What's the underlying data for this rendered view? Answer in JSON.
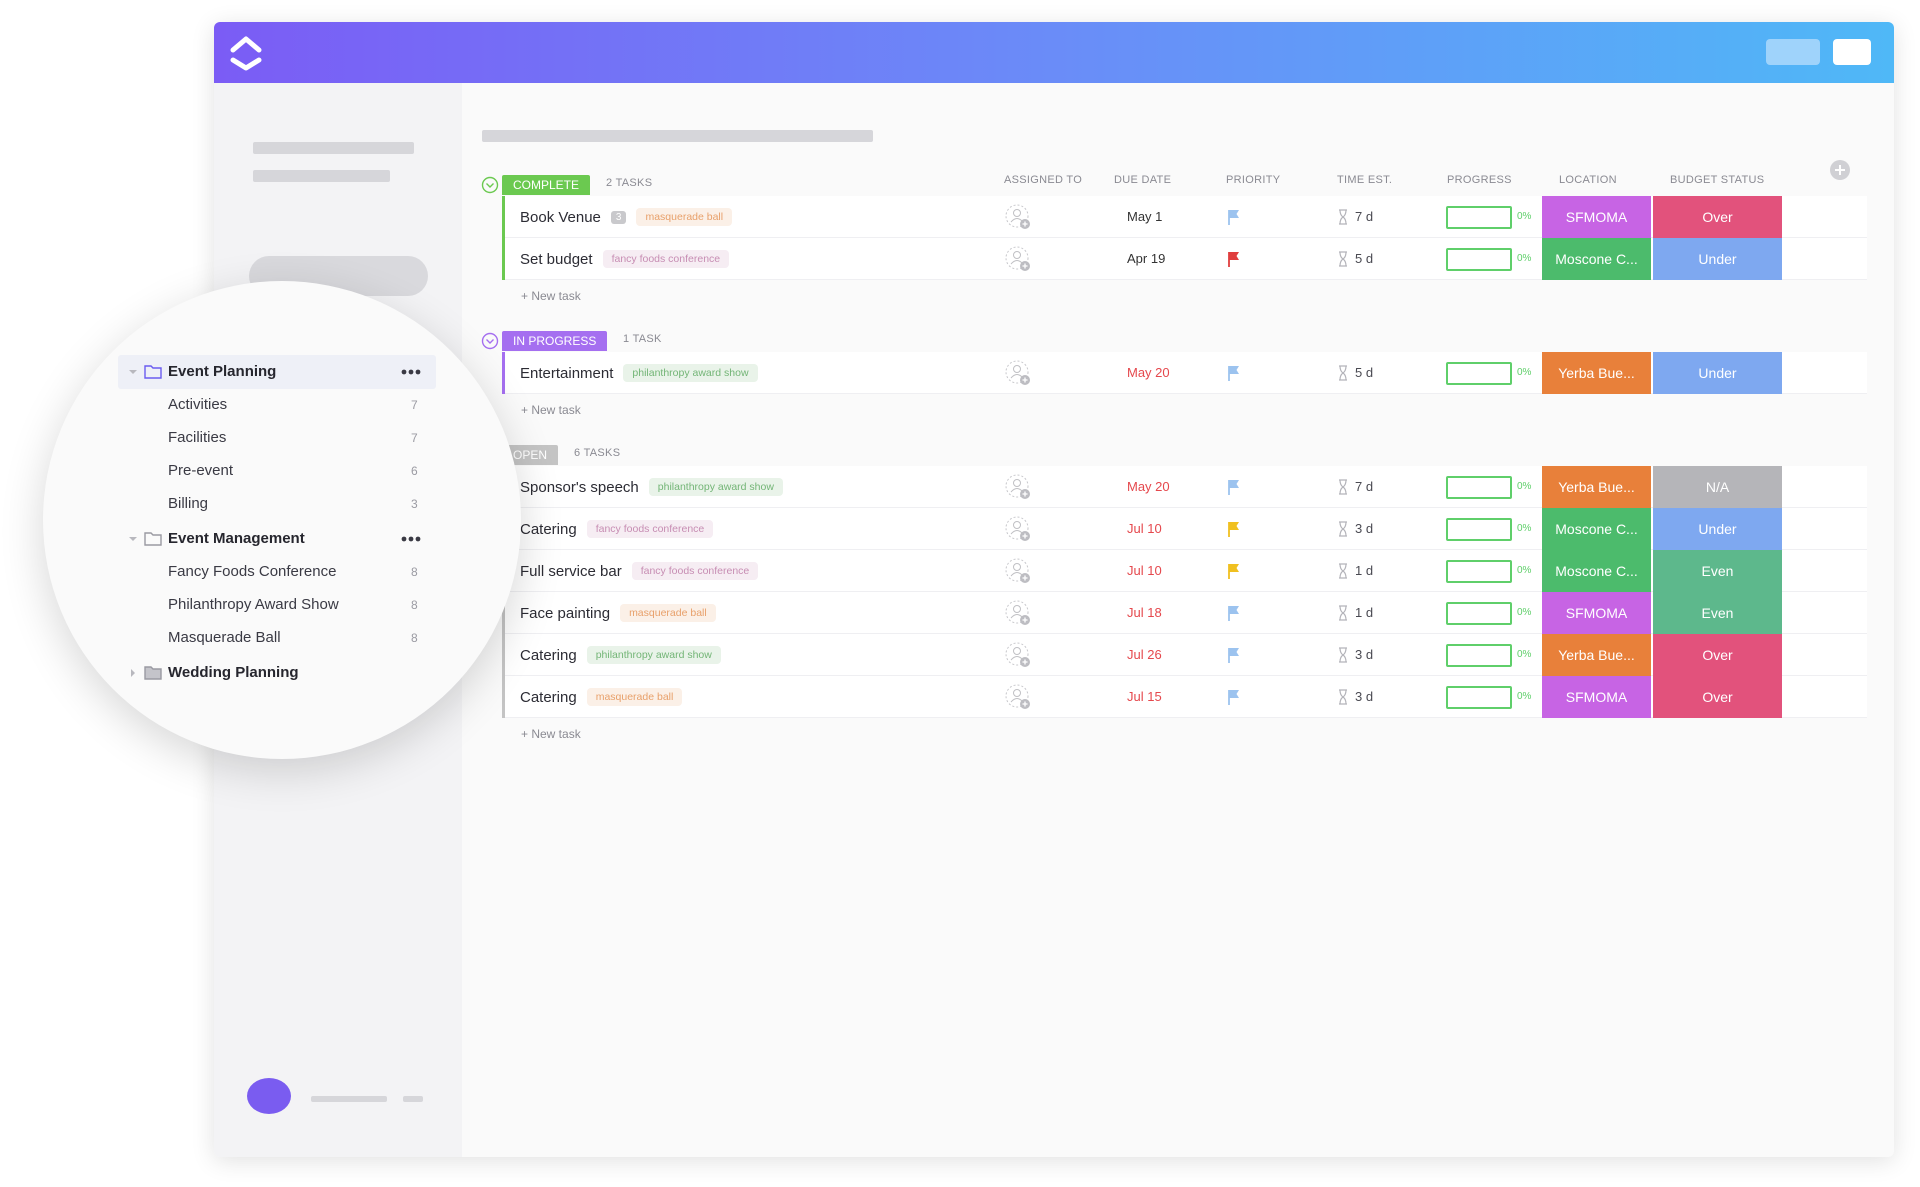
{
  "sidebar": {
    "tree": [
      {
        "label": "Event Planning",
        "children": [
          {
            "label": "Activities",
            "count": 7
          },
          {
            "label": "Facilities",
            "count": 7
          },
          {
            "label": "Pre-event",
            "count": 6
          },
          {
            "label": "Billing",
            "count": 3
          }
        ]
      },
      {
        "label": "Event Management",
        "children": [
          {
            "label": "Fancy Foods Conference",
            "count": 8
          },
          {
            "label": "Philanthropy Award Show",
            "count": 8
          },
          {
            "label": "Masquerade Ball",
            "count": 8
          }
        ]
      },
      {
        "label": "Wedding Planning",
        "children": []
      }
    ]
  },
  "table": {
    "columns": [
      "ASSIGNED TO",
      "DUE DATE",
      "PRIORITY",
      "TIME EST.",
      "PROGRESS",
      "LOCATION",
      "BUDGET STATUS"
    ],
    "new_task": "+ New task",
    "groups": [
      {
        "status": "COMPLETE",
        "count": "2 TASKS",
        "color": "#6bc950",
        "tasks": [
          {
            "name": "Book Venue",
            "subtasks": 3,
            "tag": "masquerade ball",
            "tag_color": "#e8a06a",
            "due": "May 1",
            "due_color": "#333333",
            "priority_color": "#9cc3ef",
            "time": "7 d",
            "progress": "0%",
            "location": "SFMOMA",
            "location_color": "#c764e4",
            "budget": "Over",
            "budget_color": "#e2527c"
          },
          {
            "name": "Set budget",
            "tag": "fancy foods conference",
            "tag_color": "#c78db3",
            "due": "Apr 19",
            "due_color": "#333333",
            "priority_color": "#e03e3e",
            "time": "5 d",
            "progress": "0%",
            "location": "Moscone C...",
            "location_color": "#4cbb6c",
            "budget": "Under",
            "budget_color": "#7ea8f0"
          }
        ]
      },
      {
        "status": "IN PROGRESS",
        "count": "1 TASK",
        "color": "#a56ff0",
        "tasks": [
          {
            "name": "Entertainment",
            "tag": "philanthropy award show",
            "tag_color": "#73b576",
            "due": "May 20",
            "due_color": "#e5484d",
            "priority_color": "#9cc3ef",
            "time": "5 d",
            "progress": "0%",
            "location": "Yerba Bue...",
            "location_color": "#e8803a",
            "budget": "Under",
            "budget_color": "#7ea8f0"
          }
        ]
      },
      {
        "status": "OPEN",
        "count": "6 TASKS",
        "color": "#c4c4c4",
        "tasks": [
          {
            "name": "Sponsor's speech",
            "tag": "philanthropy award show",
            "tag_color": "#73b576",
            "due": "May 20",
            "due_color": "#e5484d",
            "priority_color": "#9cc3ef",
            "time": "7 d",
            "progress": "0%",
            "location": "Yerba Bue...",
            "location_color": "#e8803a",
            "budget": "N/A",
            "budget_color": "#b5b5b9"
          },
          {
            "name": "Catering",
            "tag": "fancy foods conference",
            "tag_color": "#c78db3",
            "due": "Jul 10",
            "due_color": "#e5484d",
            "priority_color": "#f0c020",
            "time": "3 d",
            "progress": "0%",
            "location": "Moscone C...",
            "location_color": "#4cbb6c",
            "budget": "Under",
            "budget_color": "#7ea8f0"
          },
          {
            "name": "Full service bar",
            "tag": "fancy foods conference",
            "tag_color": "#c78db3",
            "due": "Jul 10",
            "due_color": "#e5484d",
            "priority_color": "#f0c020",
            "time": "1 d",
            "progress": "0%",
            "location": "Moscone C...",
            "location_color": "#4cbb6c",
            "budget": "Even",
            "budget_color": "#5db88c"
          },
          {
            "name": "Face painting",
            "tag": "masquerade ball",
            "tag_color": "#e8a06a",
            "due": "Jul 18",
            "due_color": "#e5484d",
            "priority_color": "#9cc3ef",
            "time": "1 d",
            "progress": "0%",
            "location": "SFMOMA",
            "location_color": "#c764e4",
            "budget": "Even",
            "budget_color": "#5db88c"
          },
          {
            "name": "Catering",
            "tag": "philanthropy award show",
            "tag_color": "#73b576",
            "due": "Jul 26",
            "due_color": "#e5484d",
            "priority_color": "#9cc3ef",
            "time": "3 d",
            "progress": "0%",
            "location": "Yerba Bue...",
            "location_color": "#e8803a",
            "budget": "Over",
            "budget_color": "#e2527c"
          },
          {
            "name": "Catering",
            "tag": "masquerade ball",
            "tag_color": "#e8a06a",
            "due": "Jul 15",
            "due_color": "#e5484d",
            "priority_color": "#9cc3ef",
            "time": "3 d",
            "progress": "0%",
            "location": "SFMOMA",
            "location_color": "#c764e4",
            "budget": "Over",
            "budget_color": "#e2527c"
          }
        ]
      }
    ]
  }
}
